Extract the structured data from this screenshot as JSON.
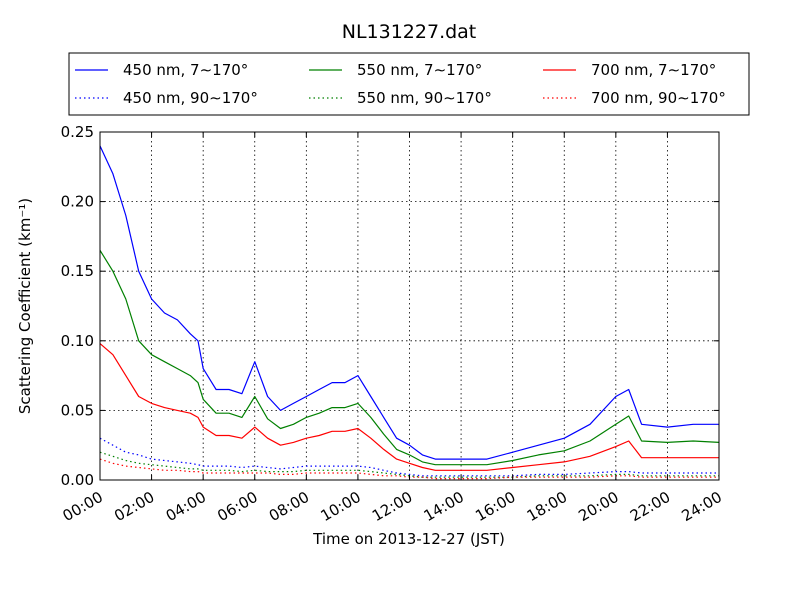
{
  "chart_data": {
    "type": "line",
    "title": "NL131227.dat",
    "xlabel": "Time on 2013-12-27 (JST)",
    "ylabel": "Scattering Coefficient (km⁻¹)",
    "xlim": [
      0,
      24
    ],
    "ylim": [
      0,
      0.25
    ],
    "grid": true,
    "legend_position": "top",
    "x_ticks": [
      {
        "value": 0,
        "label": "00:00"
      },
      {
        "value": 2,
        "label": "02:00"
      },
      {
        "value": 4,
        "label": "04:00"
      },
      {
        "value": 6,
        "label": "06:00"
      },
      {
        "value": 8,
        "label": "08:00"
      },
      {
        "value": 10,
        "label": "10:00"
      },
      {
        "value": 12,
        "label": "12:00"
      },
      {
        "value": 14,
        "label": "14:00"
      },
      {
        "value": 16,
        "label": "16:00"
      },
      {
        "value": 18,
        "label": "18:00"
      },
      {
        "value": 20,
        "label": "20:00"
      },
      {
        "value": 22,
        "label": "22:00"
      },
      {
        "value": 24,
        "label": "24:00"
      }
    ],
    "y_ticks": [
      {
        "value": 0,
        "label": "0.00"
      },
      {
        "value": 0.05,
        "label": "0.05"
      },
      {
        "value": 0.1,
        "label": "0.10"
      },
      {
        "value": 0.15,
        "label": "0.15"
      },
      {
        "value": 0.2,
        "label": "0.20"
      },
      {
        "value": 0.25,
        "label": "0.25"
      }
    ],
    "x": [
      0,
      0.5,
      1.0,
      1.5,
      2.0,
      2.5,
      3.0,
      3.5,
      3.8,
      4.0,
      4.5,
      5.0,
      5.5,
      6.0,
      6.5,
      7.0,
      7.5,
      8.0,
      8.5,
      9.0,
      9.5,
      10.0,
      10.5,
      11.0,
      11.5,
      12.0,
      12.5,
      13.0,
      13.5,
      14.0,
      15.0,
      16.0,
      17.0,
      18.0,
      19.0,
      20.0,
      20.5,
      21.0,
      22.0,
      23.0,
      24.0
    ],
    "series": [
      {
        "name": "450 nm, 7∼170°",
        "color": "#0000ff",
        "style": "solid",
        "values": [
          0.24,
          0.22,
          0.19,
          0.15,
          0.13,
          0.12,
          0.115,
          0.105,
          0.1,
          0.08,
          0.065,
          0.065,
          0.062,
          0.085,
          0.06,
          0.05,
          0.055,
          0.06,
          0.065,
          0.07,
          0.07,
          0.075,
          0.06,
          0.045,
          0.03,
          0.025,
          0.018,
          0.015,
          0.015,
          0.015,
          0.015,
          0.02,
          0.025,
          0.03,
          0.04,
          0.06,
          0.065,
          0.04,
          0.038,
          0.04,
          0.04
        ]
      },
      {
        "name": "450 nm, 90∼170°",
        "color": "#0000ff",
        "style": "dotted",
        "values": [
          0.03,
          0.025,
          0.02,
          0.018,
          0.015,
          0.014,
          0.013,
          0.012,
          0.011,
          0.01,
          0.01,
          0.01,
          0.009,
          0.01,
          0.009,
          0.008,
          0.009,
          0.01,
          0.01,
          0.01,
          0.01,
          0.01,
          0.009,
          0.007,
          0.005,
          0.004,
          0.003,
          0.003,
          0.003,
          0.003,
          0.003,
          0.003,
          0.004,
          0.004,
          0.005,
          0.006,
          0.006,
          0.005,
          0.005,
          0.005,
          0.005
        ]
      },
      {
        "name": "550 nm, 7∼170°",
        "color": "#008000",
        "style": "solid",
        "values": [
          0.165,
          0.15,
          0.13,
          0.1,
          0.09,
          0.085,
          0.08,
          0.075,
          0.07,
          0.058,
          0.048,
          0.048,
          0.045,
          0.06,
          0.044,
          0.037,
          0.04,
          0.045,
          0.048,
          0.052,
          0.052,
          0.055,
          0.045,
          0.033,
          0.022,
          0.018,
          0.013,
          0.011,
          0.011,
          0.011,
          0.011,
          0.014,
          0.018,
          0.021,
          0.028,
          0.04,
          0.046,
          0.028,
          0.027,
          0.028,
          0.027
        ]
      },
      {
        "name": "550 nm, 90∼170°",
        "color": "#008000",
        "style": "dotted",
        "values": [
          0.02,
          0.017,
          0.014,
          0.012,
          0.011,
          0.01,
          0.009,
          0.008,
          0.008,
          0.007,
          0.007,
          0.007,
          0.006,
          0.007,
          0.006,
          0.006,
          0.006,
          0.007,
          0.007,
          0.007,
          0.007,
          0.007,
          0.006,
          0.005,
          0.004,
          0.003,
          0.002,
          0.002,
          0.002,
          0.002,
          0.002,
          0.002,
          0.003,
          0.003,
          0.003,
          0.004,
          0.004,
          0.003,
          0.003,
          0.003,
          0.003
        ]
      },
      {
        "name": "700 nm, 7∼170°",
        "color": "#ff0000",
        "style": "solid",
        "values": [
          0.098,
          0.09,
          0.075,
          0.06,
          0.055,
          0.052,
          0.05,
          0.048,
          0.045,
          0.038,
          0.032,
          0.032,
          0.03,
          0.038,
          0.03,
          0.025,
          0.027,
          0.03,
          0.032,
          0.035,
          0.035,
          0.037,
          0.03,
          0.022,
          0.015,
          0.012,
          0.009,
          0.007,
          0.007,
          0.007,
          0.007,
          0.009,
          0.011,
          0.013,
          0.017,
          0.024,
          0.028,
          0.016,
          0.016,
          0.016,
          0.016
        ]
      },
      {
        "name": "700 nm, 90∼170°",
        "color": "#ff0000",
        "style": "dotted",
        "values": [
          0.015,
          0.012,
          0.01,
          0.009,
          0.008,
          0.007,
          0.007,
          0.006,
          0.006,
          0.005,
          0.005,
          0.005,
          0.005,
          0.005,
          0.005,
          0.004,
          0.004,
          0.005,
          0.005,
          0.005,
          0.005,
          0.005,
          0.004,
          0.003,
          0.003,
          0.002,
          0.002,
          0.001,
          0.001,
          0.001,
          0.001,
          0.002,
          0.002,
          0.002,
          0.002,
          0.003,
          0.003,
          0.002,
          0.002,
          0.002,
          0.002
        ]
      }
    ]
  }
}
